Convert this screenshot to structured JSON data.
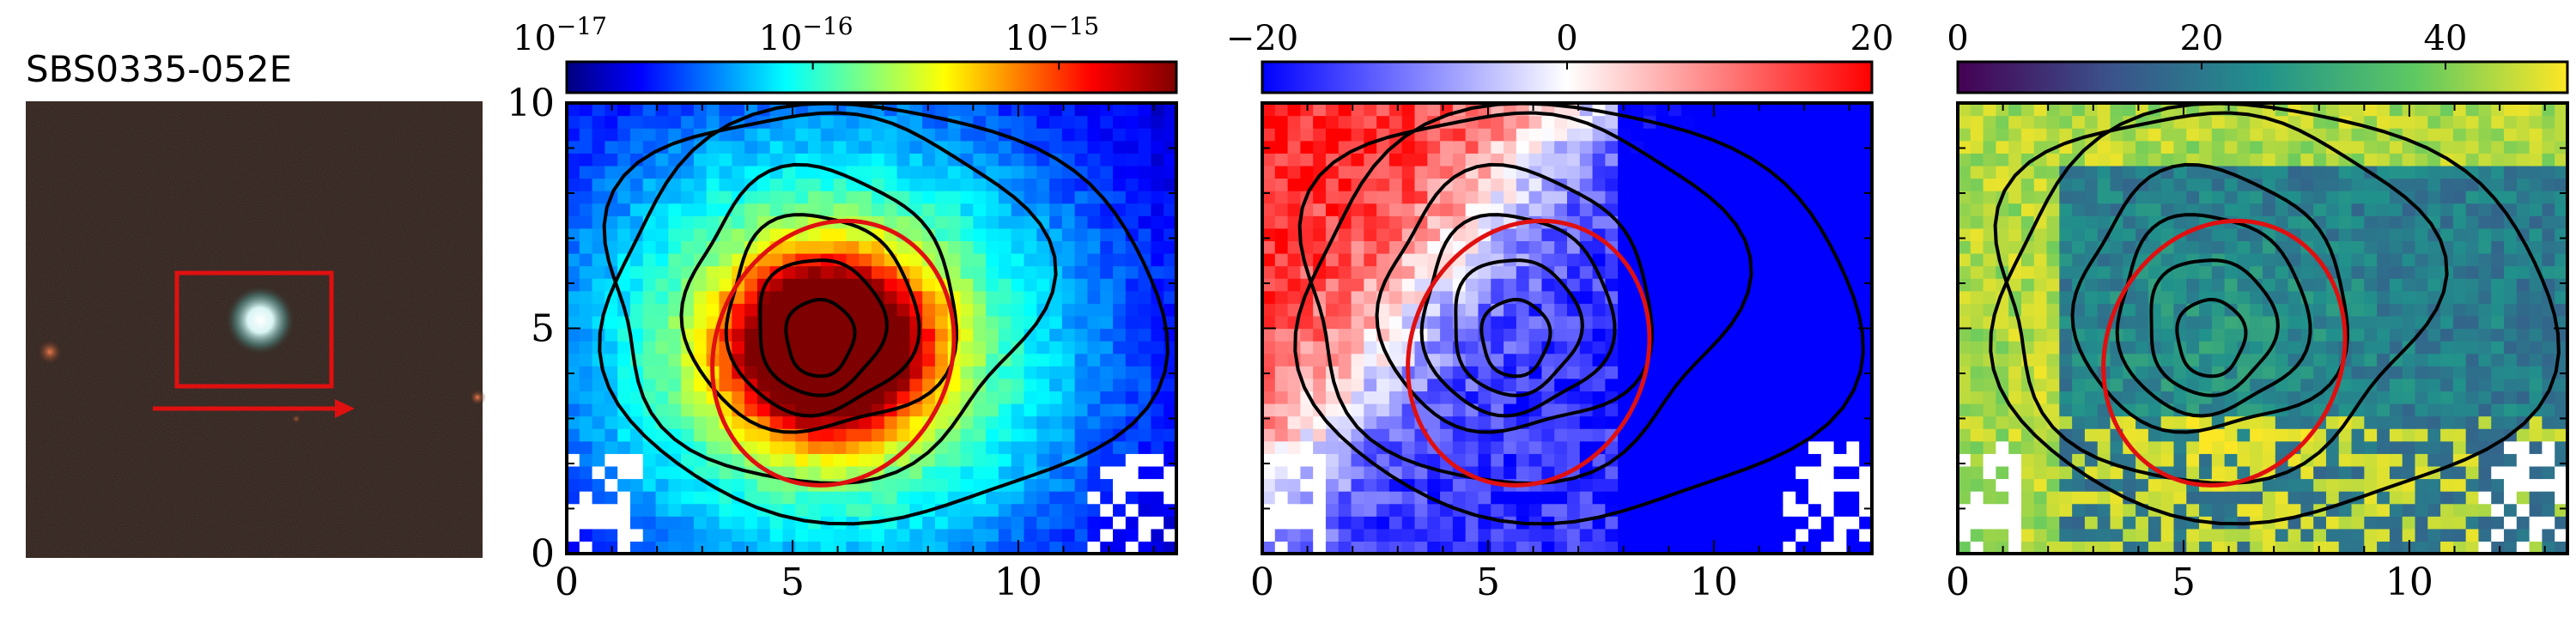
{
  "figure": {
    "object_name": "SBS0335-052E",
    "colors": {
      "contour": "#000000",
      "ellipse": "#e01010",
      "box": "#e01010",
      "arrow": "#e01010",
      "sky": "#2b1e19"
    },
    "panels": [
      {
        "role": "flux",
        "colormap": "jet",
        "colorbar": {
          "ticks": [
            "10^-17",
            "10^-16",
            "10^-15"
          ],
          "scale": "log",
          "range": [
            1e-17,
            3e-15
          ]
        }
      },
      {
        "role": "velocity",
        "colormap": "bwr",
        "colorbar": {
          "ticks": [
            "−20",
            "0",
            "20"
          ],
          "range": [
            -20,
            20
          ]
        }
      },
      {
        "role": "dispersion",
        "colormap": "viridis",
        "colorbar": {
          "ticks": [
            "0",
            "20",
            "40"
          ],
          "range": [
            0,
            50
          ]
        }
      }
    ]
  },
  "chart_data": [
    {
      "type": "heatmap",
      "panel": 1,
      "xlim": [
        0,
        13.5
      ],
      "ylim": [
        0,
        10
      ],
      "xticks": [
        "0",
        "5",
        "10"
      ],
      "yticks": [
        "0",
        "5",
        "10"
      ],
      "peak": [
        5.8,
        4.6
      ],
      "ellipse": {
        "center": [
          5.9,
          4.45
        ],
        "semi_axes": [
          2.6,
          3.0
        ],
        "angle_deg": 25
      }
    },
    {
      "type": "heatmap",
      "panel": 2,
      "xlim": [
        0,
        13.5
      ],
      "ylim": [
        0,
        10
      ],
      "xticks": [
        "0",
        "5",
        "10"
      ],
      "yticks": []
    },
    {
      "type": "heatmap",
      "panel": 3,
      "xlim": [
        0,
        13.5
      ],
      "ylim": [
        0,
        10
      ],
      "xticks": [
        "0",
        "5",
        "10"
      ],
      "yticks": []
    }
  ]
}
